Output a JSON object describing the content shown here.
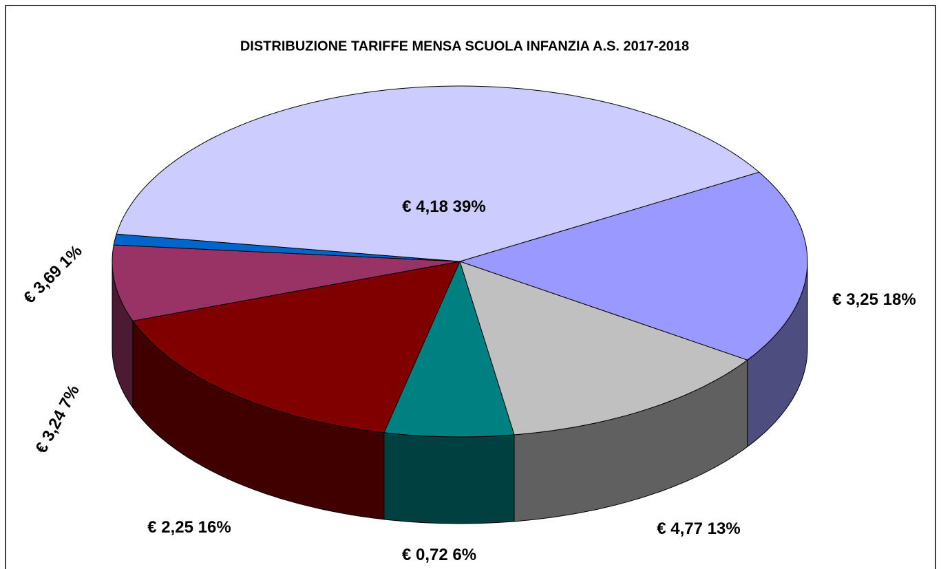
{
  "chart_data": {
    "type": "pie3d",
    "title": "DISTRIBUZIONE TARIFFE MENSA SCUOLA INFANZIA A.S. 2017-2018",
    "categories": [
      "€ 3,25",
      "€ 4,77",
      "€ 0,72",
      "€ 2,25",
      "€ 3,24",
      "€ 3,69",
      "€ 4,18"
    ],
    "values": [
      18,
      13,
      6,
      16,
      7,
      1,
      39
    ],
    "value_labels": [
      "18%",
      "13%",
      "6%",
      "16%",
      "7%",
      "1%",
      "39%"
    ],
    "colors": [
      "#9999ff",
      "#c0c0c0",
      "#008080",
      "#800000",
      "#993366",
      "#0066cc",
      "#ccccff"
    ]
  }
}
